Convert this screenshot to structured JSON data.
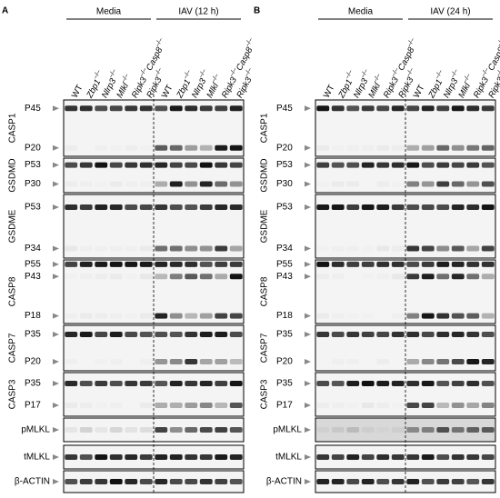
{
  "panels": [
    {
      "label": "A",
      "groups": [
        "Media",
        "IAV (12 h)"
      ],
      "lanes": [
        [
          "WT"
        ],
        [
          "Zbp1",
          "–/–"
        ],
        [
          "Nlrp3",
          "–/–"
        ],
        [
          "Mlkl",
          "–/–"
        ],
        [
          "Ripk3",
          "–/–",
          "Casp8",
          "–/–"
        ],
        [
          "Ripk3",
          "–/–"
        ],
        [
          "WT"
        ],
        [
          "Zbp1",
          "–/–"
        ],
        [
          "Nlrp3",
          "–/–"
        ],
        [
          "Mlkl",
          "–/–"
        ],
        [
          "Ripk3",
          "–/–",
          "Casp8",
          "–/–"
        ],
        [
          "Ripk3",
          "–/–"
        ]
      ],
      "blots": [
        {
          "name": "CASP1",
          "markers": [
            "P45",
            "P20"
          ]
        },
        {
          "name": "GSDMD",
          "markers": [
            "P53",
            "P30"
          ]
        },
        {
          "name": "GSDME",
          "markers": [
            "P53",
            "P34"
          ]
        },
        {
          "name": "CASP8",
          "markers": [
            "P55",
            "P43",
            "P18"
          ]
        },
        {
          "name": "CASP7",
          "markers": [
            "P35",
            "P20"
          ]
        },
        {
          "name": "CASP3",
          "markers": [
            "P35",
            "P17"
          ]
        },
        {
          "name": "pMLKL",
          "markers": []
        },
        {
          "name": "tMLKL",
          "markers": []
        },
        {
          "name": "β-ACTIN",
          "markers": []
        }
      ]
    },
    {
      "label": "B",
      "groups": [
        "Media",
        "IAV (24 h)"
      ],
      "lanes": [
        [
          "WT"
        ],
        [
          "Zbp1",
          "–/–"
        ],
        [
          "Nlrp3",
          "–/–"
        ],
        [
          "Mlkl",
          "–/–"
        ],
        [
          "Ripk3",
          "–/–",
          "Casp8",
          "–/–"
        ],
        [
          "Ripk3",
          "–/–"
        ],
        [
          "WT"
        ],
        [
          "Zbp1",
          "–/–"
        ],
        [
          "Nlrp3",
          "–/–"
        ],
        [
          "Mlkl",
          "–/–"
        ],
        [
          "Ripk3",
          "–/–",
          "Casp8",
          "–/–"
        ],
        [
          "Ripk3",
          "–/–"
        ]
      ],
      "blots": [
        {
          "name": "CASP1",
          "markers": [
            "P45",
            "P20"
          ]
        },
        {
          "name": "GSDMD",
          "markers": [
            "P53",
            "P30"
          ]
        },
        {
          "name": "GSDME",
          "markers": [
            "P53",
            "P34"
          ]
        },
        {
          "name": "CASP8",
          "markers": [
            "P55",
            "P43",
            "P18"
          ]
        },
        {
          "name": "CASP7",
          "markers": [
            "P35",
            "P20"
          ]
        },
        {
          "name": "CASP3",
          "markers": [
            "P35",
            "P17"
          ]
        },
        {
          "name": "pMLKL",
          "markers": []
        },
        {
          "name": "tMLKL",
          "markers": []
        },
        {
          "name": "β-ACTIN",
          "markers": []
        }
      ]
    }
  ]
}
